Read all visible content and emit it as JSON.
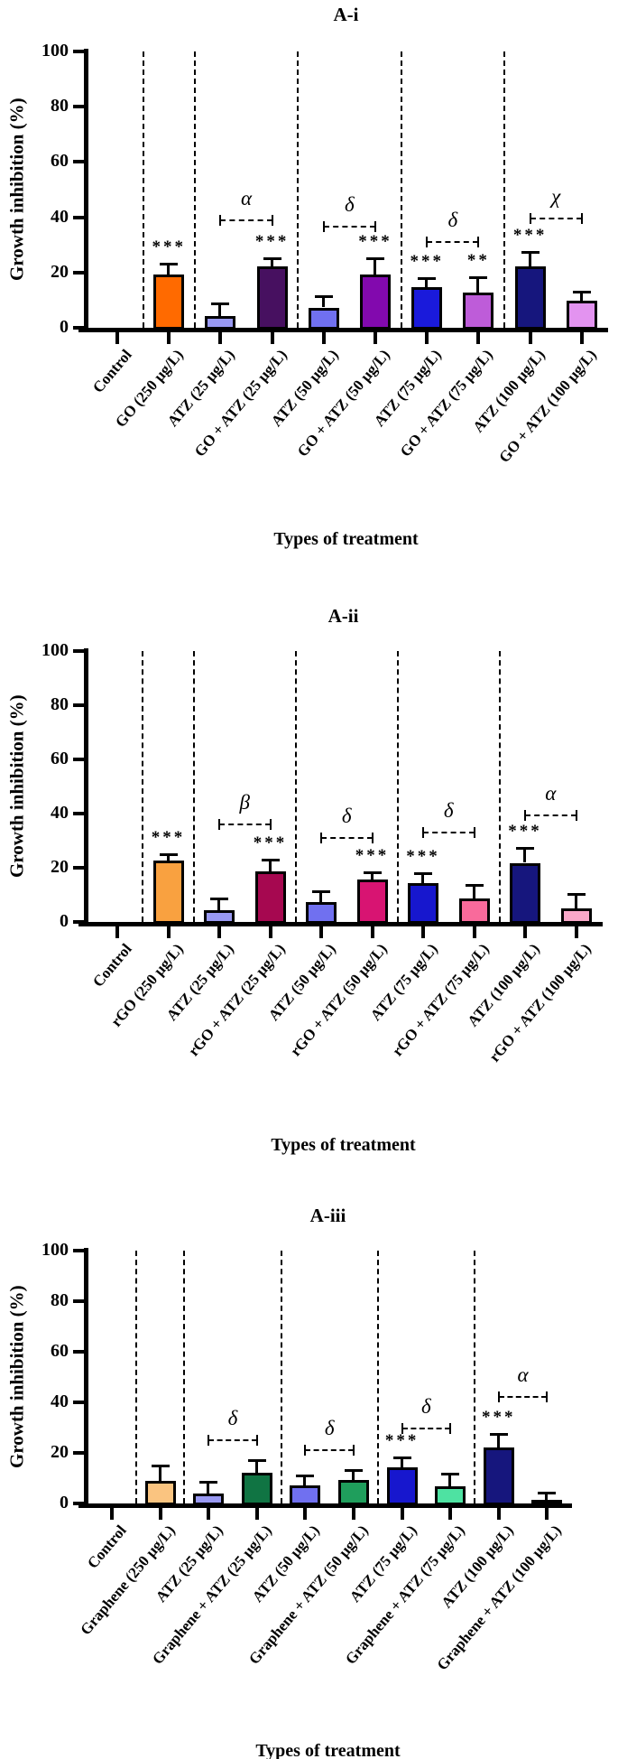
{
  "figure": {
    "y_axis_title": "Growth inhibition (%)",
    "x_axis_title": "Types of treatment",
    "panel_ids": [
      "A-i",
      "A-ii",
      "A-iii"
    ]
  },
  "chart_data": [
    {
      "type": "bar",
      "title": "A-i",
      "ylabel": "Growth inhibition (%)",
      "xlabel": "Types of treatment",
      "ylim": [
        0,
        100
      ],
      "yticks": [
        0,
        20,
        40,
        60,
        80,
        100
      ],
      "grid": false,
      "legend_position": "none",
      "categories": [
        "Control",
        "GO (250 µg/L)",
        "ATZ (25 µg/L)",
        "GO + ATZ (25 µg/L)",
        "ATZ (50 µg/L)",
        "GO + ATZ (50 µg/L)",
        "ATZ (75 µg/L)",
        "GO + ATZ (75 µg/L)",
        "ATZ (100 µg/L)",
        "GO + ATZ (100 µg/L)"
      ],
      "values": [
        0,
        20,
        5,
        23,
        8,
        19.8,
        15.2,
        13.5,
        22.8,
        10.5
      ],
      "errors": [
        0,
        3.5,
        4,
        2.5,
        3.8,
        5.8,
        3,
        5,
        5,
        3
      ],
      "colors": [
        "#FFFFFF",
        "#FF6A00",
        "#9999F2",
        "#471060",
        "#7070F0",
        "#8209AE",
        "#1A1ADB",
        "#BE5CD9",
        "#16167D",
        "#E393F0"
      ],
      "significance": [
        "",
        "***",
        "",
        "***",
        "",
        "***",
        "***",
        "**",
        "***",
        ""
      ],
      "brackets": [
        {
          "label": "α",
          "from": 2,
          "to": 3,
          "y": 39
        },
        {
          "label": "δ",
          "from": 4,
          "to": 5,
          "y": 36.5
        },
        {
          "label": "δ",
          "from": 6,
          "to": 7,
          "y": 31
        },
        {
          "label": "χ",
          "from": 8,
          "to": 9,
          "y": 39.5
        }
      ],
      "separators_after": [
        0,
        1,
        3,
        5,
        7
      ]
    },
    {
      "type": "bar",
      "title": "A-ii",
      "ylabel": "Growth inhibition (%)",
      "xlabel": "Types of treatment",
      "ylim": [
        0,
        100
      ],
      "yticks": [
        0,
        20,
        40,
        60,
        80,
        100
      ],
      "grid": false,
      "legend_position": "none",
      "categories": [
        "Control",
        "rGO (250 µg/L)",
        "ATZ (25 µg/L)",
        "rGO + ATZ (25 µg/L)",
        "ATZ (50 µg/L)",
        "rGO + ATZ (50 µg/L)",
        "ATZ (75 µg/L)",
        "rGO + ATZ (75 µg/L)",
        "ATZ (100 µg/L)",
        "rGO + ATZ (100 µg/L)"
      ],
      "values": [
        0,
        23.2,
        5,
        19.5,
        8,
        16.2,
        15,
        9.5,
        22.5,
        5.8
      ],
      "errors": [
        0,
        2,
        4,
        4,
        3.8,
        2.5,
        3.5,
        4.5,
        5.3,
        5
      ],
      "colors": [
        "#FFFFFF",
        "#F9A140",
        "#9999F2",
        "#A60850",
        "#7070F0",
        "#D81472",
        "#1717CE",
        "#F96A9B",
        "#16167D",
        "#F9A8C9"
      ],
      "significance": [
        "",
        "***",
        "",
        "***",
        "",
        "***",
        "***",
        "",
        "***",
        ""
      ],
      "brackets": [
        {
          "label": "β",
          "from": 2,
          "to": 3,
          "y": 36
        },
        {
          "label": "δ",
          "from": 4,
          "to": 5,
          "y": 31
        },
        {
          "label": "δ",
          "from": 6,
          "to": 7,
          "y": 33
        },
        {
          "label": "α",
          "from": 8,
          "to": 9,
          "y": 39.5
        }
      ],
      "separators_after": [
        0,
        1,
        3,
        5,
        7
      ]
    },
    {
      "type": "bar",
      "title": "A-iii",
      "ylabel": "Growth inhibition (%)",
      "xlabel": "Types of treatment",
      "ylim": [
        0,
        100
      ],
      "yticks": [
        0,
        20,
        40,
        60,
        80,
        100
      ],
      "grid": false,
      "legend_position": "none",
      "categories": [
        "Control",
        "Graphene (250 µg/L)",
        "ATZ (25 µg/L)",
        "Graphene + ATZ (25 µg/L)",
        "ATZ (50 µg/L)",
        "Graphene + ATZ (50 µg/L)",
        "ATZ (75 µg/L)",
        "Graphene + ATZ (75 µg/L)",
        "ATZ (100 µg/L)",
        "Graphene + ATZ (100 µg/L)"
      ],
      "values": [
        0,
        9.5,
        4.8,
        13,
        8,
        10,
        15,
        7.5,
        23,
        2
      ],
      "errors": [
        0,
        6,
        4.2,
        4.5,
        3.5,
        3.5,
        3.5,
        4.5,
        5,
        2.5
      ],
      "colors": [
        "#FFFFFF",
        "#FAC480",
        "#9999F2",
        "#107443",
        "#7070F0",
        "#1F9E5C",
        "#1717CE",
        "#4EE2A2",
        "#16167D",
        "#9BD8BC"
      ],
      "significance": [
        "",
        "",
        "",
        "",
        "",
        "",
        "***",
        "",
        "***",
        ""
      ],
      "brackets": [
        {
          "label": "δ",
          "from": 2,
          "to": 3,
          "y": 25
        },
        {
          "label": "δ",
          "from": 4,
          "to": 5,
          "y": 21
        },
        {
          "label": "δ",
          "from": 6,
          "to": 7,
          "y": 29.5
        },
        {
          "label": "α",
          "from": 8,
          "to": 9,
          "y": 42
        }
      ],
      "separators_after": [
        0,
        1,
        3,
        5,
        7
      ]
    }
  ]
}
